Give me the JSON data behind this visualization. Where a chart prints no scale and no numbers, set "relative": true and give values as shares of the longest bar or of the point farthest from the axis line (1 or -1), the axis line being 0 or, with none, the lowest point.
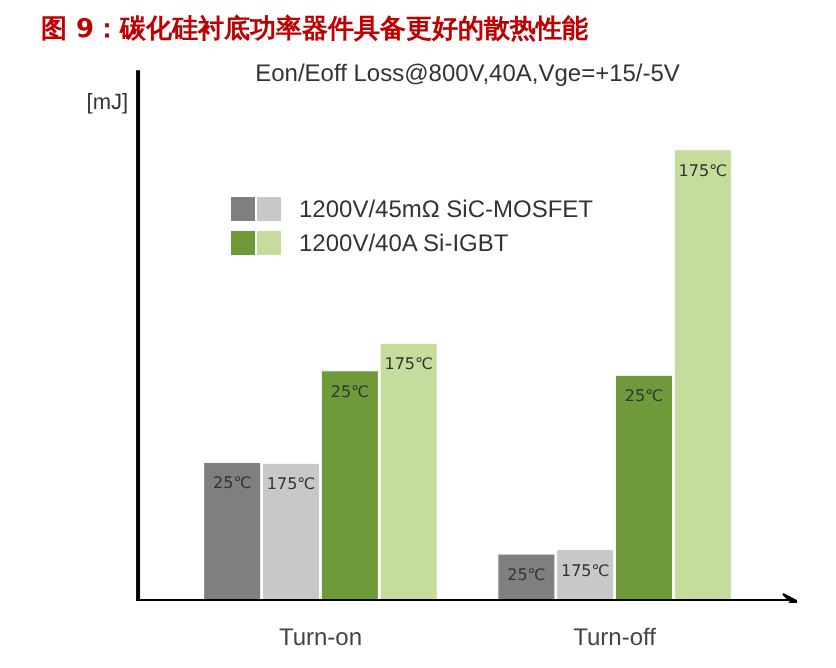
{
  "chart_data": {
    "type": "bar",
    "title": "图 9：碳化硅衬底功率器件具备更好的散热性能",
    "subtitle": "Eon/Eoff Loss@800V,40A,Vge=+15/-5V",
    "ylabel": "[mJ]",
    "relative": true,
    "categories": [
      "Turn-on",
      "Turn-off"
    ],
    "series": [
      {
        "name": "1200V/45mΩ SiC-MOSFET",
        "color": "#7f7f7f",
        "values": [
          0.307,
          0.104
        ]
      },
      {
        "color": "#c8c8c8",
        "values": [
          0.305,
          0.114
        ]
      },
      {
        "name": "1200V/40A Si-IGBT",
        "color": "#6e9a3a",
        "values": [
          0.51,
          0.5
        ]
      },
      {
        "color": "#c5dc9c",
        "values": [
          0.571,
          1.0
        ]
      }
    ],
    "annotations": [
      "25℃",
      "25℃",
      "175℃",
      "175℃",
      "25℃",
      "25℃",
      "175℃",
      "175℃"
    ],
    "legend": "top left",
    "grid": false
  }
}
